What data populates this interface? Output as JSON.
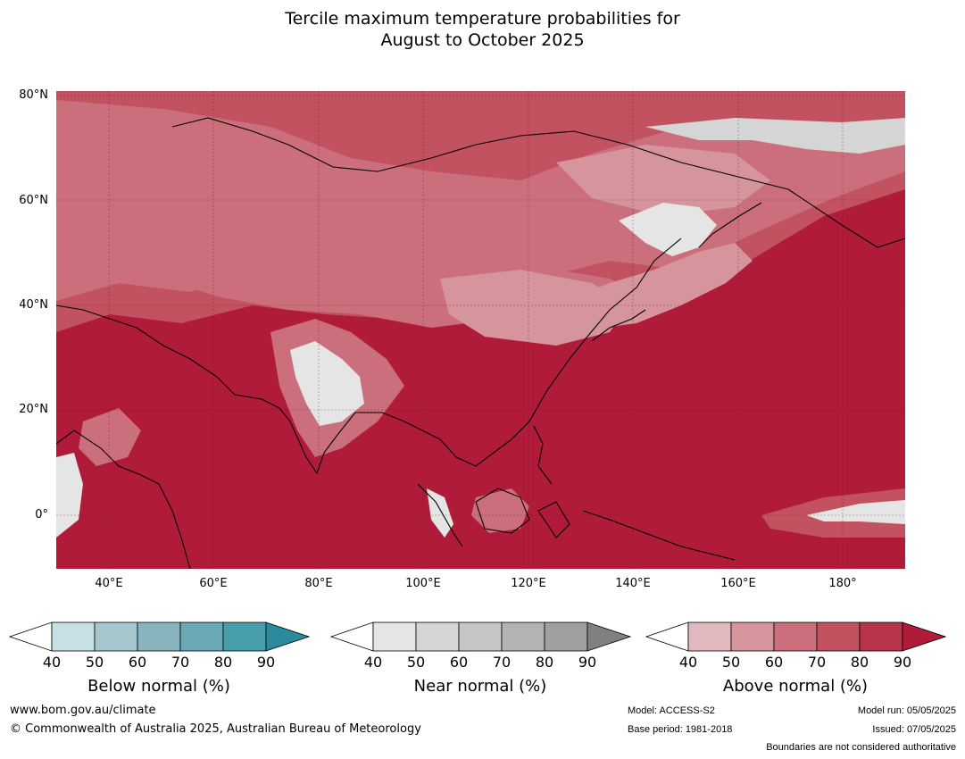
{
  "title": {
    "line1": "Tercile maximum temperature probabilities for",
    "line2": "August to October 2025"
  },
  "map": {
    "lat_labels": [
      "80°N",
      "60°N",
      "40°N",
      "20°N",
      "0°"
    ],
    "lon_labels": [
      "40°E",
      "60°E",
      "80°E",
      "100°E",
      "120°E",
      "140°E",
      "160°E",
      "180°"
    ],
    "lon_range": [
      30,
      192
    ],
    "lat_range": [
      -10,
      81
    ]
  },
  "legend": [
    {
      "title": "Below normal (%)",
      "ticks": [
        "40",
        "50",
        "60",
        "70",
        "80",
        "90"
      ],
      "colors": [
        "#ffffff",
        "#c7e0e6",
        "#a6c7cd",
        "#88b4bd",
        "#6ba9b6",
        "#479fae",
        "#2b8a9c"
      ]
    },
    {
      "title": "Near normal (%)",
      "ticks": [
        "40",
        "50",
        "60",
        "70",
        "80",
        "90"
      ],
      "colors": [
        "#ffffff",
        "#e5e5e5",
        "#d5d5d5",
        "#c5c5c5",
        "#b3b3b3",
        "#a0a0a0",
        "#808080"
      ]
    },
    {
      "title": "Above normal (%)",
      "ticks": [
        "40",
        "50",
        "60",
        "70",
        "80",
        "90"
      ],
      "colors": [
        "#ffffff",
        "#e0b8be",
        "#d6949c",
        "#cc6f7c",
        "#c2525f",
        "#b8344a",
        "#b01b3a"
      ]
    }
  ],
  "footer": {
    "website": "www.bom.gov.au/climate",
    "copyright": "© Commonwealth of Australia 2025, Australian Bureau of Meteorology",
    "model": "Model: ACCESS-S2",
    "base_period": "Base period: 1981-2018",
    "model_run": "Model run: 05/05/2025",
    "issued": "Issued: 07/05/2025",
    "boundaries": "Boundaries are not considered authoritative"
  }
}
